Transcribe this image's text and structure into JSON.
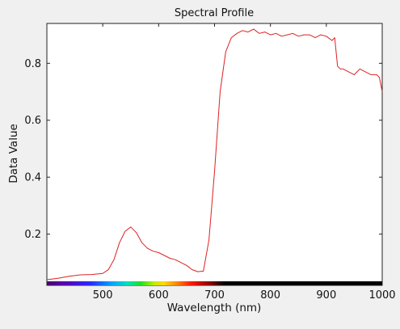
{
  "chart_data": {
    "type": "line",
    "title": "Spectral Profile",
    "xlabel": "Wavelength (nm)",
    "ylabel": "Data Value",
    "xlim": [
      400,
      1000
    ],
    "ylim": [
      0.02,
      0.94
    ],
    "xticks": [
      500,
      600,
      700,
      800,
      900,
      1000
    ],
    "yticks": [
      0.2,
      0.4,
      0.6,
      0.8
    ],
    "xtick_labels": [
      "500",
      "600",
      "700",
      "800",
      "900",
      "1000"
    ],
    "ytick_labels": [
      "0.2",
      "0.4",
      "0.6",
      "0.8"
    ],
    "grid": false,
    "wavelength_color_bar": true,
    "series": [
      {
        "color": "#dd2222",
        "x": [
          400,
          420,
          440,
          460,
          480,
          500,
          510,
          520,
          530,
          540,
          550,
          560,
          570,
          580,
          590,
          600,
          610,
          620,
          630,
          640,
          650,
          660,
          670,
          680,
          690,
          700,
          710,
          720,
          730,
          740,
          750,
          760,
          770,
          780,
          790,
          800,
          810,
          820,
          830,
          840,
          850,
          860,
          870,
          880,
          890,
          900,
          910,
          915,
          920,
          925,
          930,
          940,
          950,
          960,
          970,
          980,
          990,
          995,
          1000
        ],
        "y": [
          0.04,
          0.045,
          0.052,
          0.057,
          0.058,
          0.062,
          0.075,
          0.11,
          0.17,
          0.21,
          0.225,
          0.205,
          0.17,
          0.15,
          0.14,
          0.135,
          0.125,
          0.115,
          0.11,
          0.1,
          0.09,
          0.075,
          0.068,
          0.07,
          0.18,
          0.42,
          0.7,
          0.84,
          0.89,
          0.905,
          0.915,
          0.91,
          0.92,
          0.905,
          0.91,
          0.9,
          0.905,
          0.895,
          0.9,
          0.905,
          0.895,
          0.9,
          0.9,
          0.89,
          0.9,
          0.895,
          0.88,
          0.89,
          0.79,
          0.78,
          0.78,
          0.77,
          0.76,
          0.78,
          0.77,
          0.76,
          0.76,
          0.75,
          0.7
        ]
      }
    ]
  }
}
